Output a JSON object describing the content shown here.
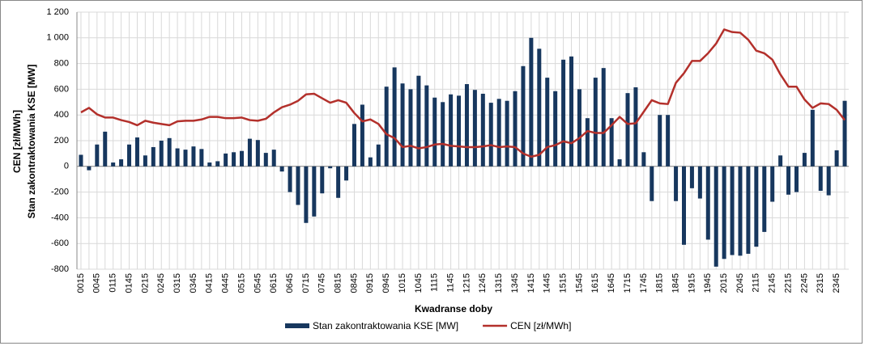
{
  "chart_data": {
    "type": "combo",
    "xlabel": "Kwadranse doby",
    "ylabel": [
      "CEN [zł/MWh]",
      "Stan zakontraktowania KSE [MW]"
    ],
    "categories": [
      "0015",
      null,
      "0045",
      null,
      "0115",
      null,
      "0145",
      null,
      "0215",
      null,
      "0245",
      null,
      "0315",
      null,
      "0345",
      null,
      "0415",
      null,
      "0445",
      null,
      "0515",
      null,
      "0545",
      null,
      "0615",
      null,
      "0645",
      null,
      "0715",
      null,
      "0745",
      null,
      "0815",
      null,
      "0845",
      null,
      "0915",
      null,
      "0945",
      null,
      "1015",
      null,
      "1045",
      null,
      "1115",
      null,
      "1145",
      null,
      "1215",
      null,
      "1245",
      null,
      "1315",
      null,
      "1345",
      null,
      "1415",
      null,
      "1445",
      null,
      "1515",
      null,
      "1545",
      null,
      "1615",
      null,
      "1645",
      null,
      "1715",
      null,
      "1745",
      null,
      "1815",
      null,
      "1845",
      null,
      "1915",
      null,
      "1945",
      null,
      "2015",
      null,
      "2045",
      null,
      "2115",
      null,
      "2145",
      null,
      "2215",
      null,
      "2245",
      null,
      "2315",
      null,
      "2345",
      null
    ],
    "series": [
      {
        "name": "Stan zakontraktowania KSE [MW]",
        "type": "bar",
        "color": "#17375e",
        "values": [
          90,
          -30,
          170,
          270,
          30,
          55,
          170,
          225,
          85,
          150,
          200,
          220,
          140,
          130,
          155,
          135,
          30,
          40,
          100,
          110,
          120,
          215,
          205,
          105,
          130,
          -40,
          -200,
          -300,
          -440,
          -390,
          -210,
          -15,
          -245,
          -110,
          330,
          480,
          70,
          170,
          620,
          770,
          645,
          600,
          705,
          630,
          535,
          500,
          560,
          550,
          640,
          595,
          565,
          495,
          525,
          510,
          585,
          780,
          1000,
          915,
          690,
          585,
          830,
          855,
          600,
          375,
          690,
          765,
          375,
          55,
          570,
          615,
          110,
          -270,
          400,
          400,
          -270,
          -610,
          -170,
          -250,
          -570,
          -780,
          -720,
          -690,
          -695,
          -680,
          -625,
          -510,
          -275,
          85,
          -220,
          -200,
          105,
          440,
          -190,
          -225,
          125,
          510
        ]
      },
      {
        "name": "CEN [zł/MWh]",
        "type": "line",
        "color": "#b3302b",
        "values": [
          420,
          455,
          405,
          380,
          380,
          360,
          345,
          320,
          355,
          340,
          330,
          320,
          350,
          355,
          355,
          365,
          385,
          385,
          375,
          375,
          380,
          360,
          355,
          370,
          420,
          460,
          480,
          510,
          560,
          565,
          530,
          495,
          515,
          495,
          415,
          350,
          365,
          330,
          250,
          220,
          150,
          160,
          140,
          150,
          170,
          175,
          160,
          155,
          150,
          150,
          155,
          165,
          150,
          155,
          150,
          100,
          75,
          90,
          150,
          165,
          195,
          180,
          220,
          275,
          260,
          260,
          320,
          385,
          330,
          335,
          425,
          515,
          490,
          485,
          650,
          725,
          820,
          820,
          880,
          955,
          1065,
          1045,
          1040,
          985,
          900,
          880,
          830,
          715,
          620,
          620,
          520,
          455,
          490,
          485,
          440,
          360
        ]
      }
    ],
    "ylim": [
      -800,
      1200
    ],
    "yticks": [
      -800,
      -600,
      -400,
      -200,
      0,
      200,
      400,
      600,
      800,
      {
        "value": 1000,
        "label": "1 000"
      },
      {
        "value": 1200,
        "label": "1 200"
      }
    ],
    "grid": true,
    "legend": "bottom"
  }
}
